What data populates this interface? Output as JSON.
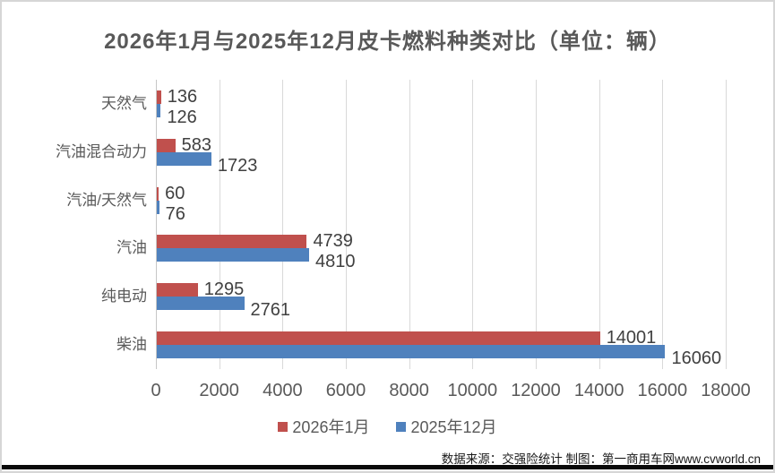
{
  "chart_data": {
    "type": "bar",
    "orientation": "horizontal",
    "title": "2026年1月与2025年12月皮卡燃料种类对比（单位：辆）",
    "categories": [
      "天然气",
      "汽油混合动力",
      "汽油/天然气",
      "汽油",
      "纯电动",
      "柴油"
    ],
    "series": [
      {
        "name": "2026年1月",
        "color": "#C0504D",
        "values": [
          136,
          583,
          60,
          4739,
          1295,
          14001
        ]
      },
      {
        "name": "2025年12月",
        "color": "#4F81BD",
        "values": [
          126,
          1723,
          76,
          4810,
          2761,
          16060
        ]
      }
    ],
    "xlim": [
      0,
      18000
    ],
    "x_ticks": [
      0,
      2000,
      4000,
      6000,
      8000,
      10000,
      12000,
      14000,
      16000,
      18000
    ],
    "grid": "vertical-gridlines-only",
    "legend_position": "bottom",
    "value_labels": "outside-end"
  },
  "footer": {
    "text": "数据来源：交强险统计 制图：第一商用车网www.cvworld.cn"
  },
  "style_colors": {
    "bar_red": "#C0504D",
    "bar_blue": "#4F81BD",
    "grid": "#D9D9D9",
    "axis_text": "#595959",
    "value_text": "#404040",
    "title_text": "#595959",
    "footer_text": "#1A1A1A",
    "bottom_bar": "#0A0A0A"
  }
}
